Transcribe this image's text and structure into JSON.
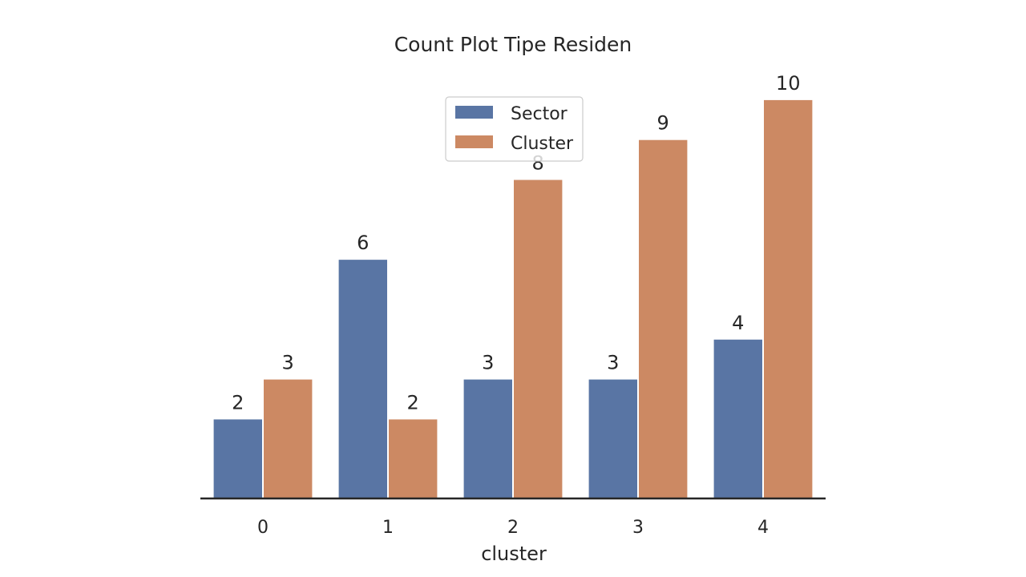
{
  "chart_data": {
    "type": "bar",
    "title": "Count Plot Tipe Residen",
    "xlabel": "cluster",
    "ylabel": "",
    "categories": [
      "0",
      "1",
      "2",
      "3",
      "4"
    ],
    "series": [
      {
        "name": "Sector",
        "values": [
          2,
          6,
          3,
          3,
          4
        ],
        "color": "#5975a4"
      },
      {
        "name": "Cluster",
        "values": [
          3,
          2,
          8,
          9,
          10
        ],
        "color": "#cc8963"
      }
    ],
    "ylim": [
      0,
      10.5
    ],
    "legend": "upper-center",
    "grid": false
  }
}
